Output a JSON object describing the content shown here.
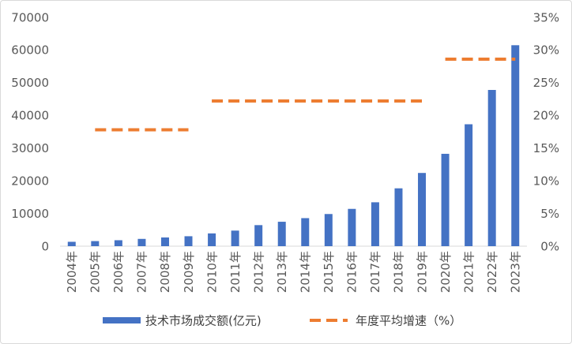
{
  "chart_data": {
    "type": "bar",
    "categories": [
      "2004年",
      "2005年",
      "2006年",
      "2007年",
      "2008年",
      "2009年",
      "2010年",
      "2011年",
      "2012年",
      "2013年",
      "2014年",
      "2015年",
      "2016年",
      "2017年",
      "2018年",
      "2019年",
      "2020年",
      "2021年",
      "2022年",
      "2023年"
    ],
    "series": [
      {
        "name": "技术市场成交额(亿元)",
        "type": "bar",
        "axis": "left",
        "color": "#4472C4",
        "values": [
          1334,
          1551,
          1818,
          2226,
          2665,
          3039,
          3907,
          4764,
          6437,
          7469,
          8577,
          9835,
          11407,
          13424,
          17697,
          22398,
          28252,
          37294,
          47791,
          61476
        ]
      },
      {
        "name": "年度平均增速（%）",
        "type": "line",
        "style": "dashed",
        "axis": "right",
        "color": "#ED7D31",
        "values": [
          null,
          17.8,
          17.8,
          17.8,
          17.8,
          17.8,
          22.2,
          22.2,
          22.2,
          22.2,
          22.2,
          22.2,
          22.2,
          22.2,
          22.2,
          22.2,
          28.6,
          28.6,
          28.6,
          28.6
        ]
      }
    ],
    "left_axis": {
      "range": [
        0,
        70000
      ],
      "ticks": [
        "0",
        "10000",
        "20000",
        "30000",
        "40000",
        "50000",
        "60000",
        "70000"
      ]
    },
    "right_axis": {
      "range": [
        0,
        35
      ],
      "ticks": [
        "0%",
        "5%",
        "10%",
        "15%",
        "20%",
        "25%",
        "30%",
        "35%"
      ]
    },
    "grid": false,
    "legend": "bottom"
  }
}
